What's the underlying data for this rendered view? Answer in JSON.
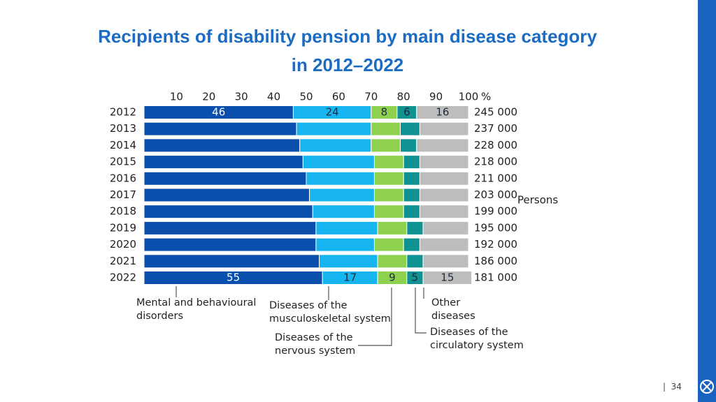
{
  "chart_data": {
    "type": "stacked-bar-horizontal",
    "title": "Recipients of disability pension by main disease category in 2012–2022",
    "categories": [
      "2012",
      "2013",
      "2014",
      "2015",
      "2016",
      "2017",
      "2018",
      "2019",
      "2020",
      "2021",
      "2022"
    ],
    "series": [
      {
        "name": "Mental and behavioural disorders",
        "color": "#0b4fac",
        "values": [
          46,
          47,
          48,
          49,
          50,
          51,
          52,
          53,
          53,
          54,
          55
        ],
        "value_labels": [
          "46",
          null,
          null,
          null,
          null,
          null,
          null,
          null,
          null,
          null,
          "55"
        ]
      },
      {
        "name": "Diseases of the musculoskeletal system",
        "color": "#17b5f0",
        "values": [
          24,
          23,
          22,
          22,
          21,
          20,
          19,
          19,
          18,
          18,
          17
        ],
        "value_labels": [
          "24",
          null,
          null,
          null,
          null,
          null,
          null,
          null,
          null,
          null,
          "17"
        ]
      },
      {
        "name": "Diseases of the nervous system",
        "color": "#8dd14f",
        "values": [
          8,
          9,
          9,
          9,
          9,
          9,
          9,
          9,
          9,
          9,
          9
        ],
        "value_labels": [
          "8",
          null,
          null,
          null,
          null,
          null,
          null,
          null,
          null,
          null,
          "9"
        ]
      },
      {
        "name": "Diseases of the circulatory system",
        "color": "#0f9291",
        "values": [
          6,
          6,
          5,
          5,
          5,
          5,
          5,
          5,
          5,
          5,
          5
        ],
        "value_labels": [
          "6",
          null,
          null,
          null,
          null,
          null,
          null,
          null,
          null,
          null,
          "5"
        ]
      },
      {
        "name": "Other diseases",
        "color": "#bdbdbd",
        "values": [
          16,
          15,
          16,
          15,
          15,
          15,
          15,
          14,
          15,
          14,
          15
        ],
        "value_labels": [
          "16",
          null,
          null,
          null,
          null,
          null,
          null,
          null,
          null,
          null,
          "15"
        ]
      }
    ],
    "xlim": [
      0,
      100
    ],
    "xticks": [
      10,
      20,
      30,
      40,
      50,
      60,
      70,
      80,
      90,
      100
    ],
    "xlabel": "%",
    "persons": [
      {
        "value": 245000,
        "label": "245 000"
      },
      {
        "value": 237000,
        "label": "237 000"
      },
      {
        "value": 228000,
        "label": "228 000"
      },
      {
        "value": 218000,
        "label": "218 000"
      },
      {
        "value": 211000,
        "label": "211 000"
      },
      {
        "value": 203000,
        "label": "203 000"
      },
      {
        "value": 199000,
        "label": "199 000"
      },
      {
        "value": 195000,
        "label": "195 000"
      },
      {
        "value": 192000,
        "label": "192 000"
      },
      {
        "value": 186000,
        "label": "186 000"
      },
      {
        "value": 181000,
        "label": "181 000"
      }
    ],
    "persons_label": "Persons"
  },
  "page": {
    "number": "34"
  }
}
